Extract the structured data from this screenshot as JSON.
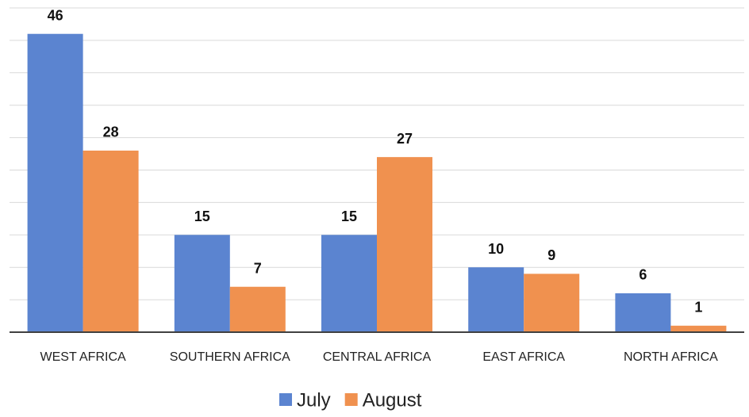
{
  "chart_data": {
    "type": "bar",
    "categories": [
      "WEST AFRICA",
      "SOUTHERN AFRICA",
      "CENTRAL AFRICA",
      "EAST AFRICA",
      "NORTH AFRICA"
    ],
    "series": [
      {
        "name": "July",
        "color": "#5b84d0",
        "values": [
          46,
          15,
          15,
          10,
          6
        ]
      },
      {
        "name": "August",
        "color": "#f0914f",
        "values": [
          28,
          7,
          27,
          9,
          1
        ]
      }
    ],
    "ylim": [
      0,
      50
    ],
    "yticks": [
      0,
      5,
      10,
      15,
      20,
      25,
      30,
      35,
      40,
      45,
      50
    ],
    "grid": true,
    "legend": "bottom"
  }
}
